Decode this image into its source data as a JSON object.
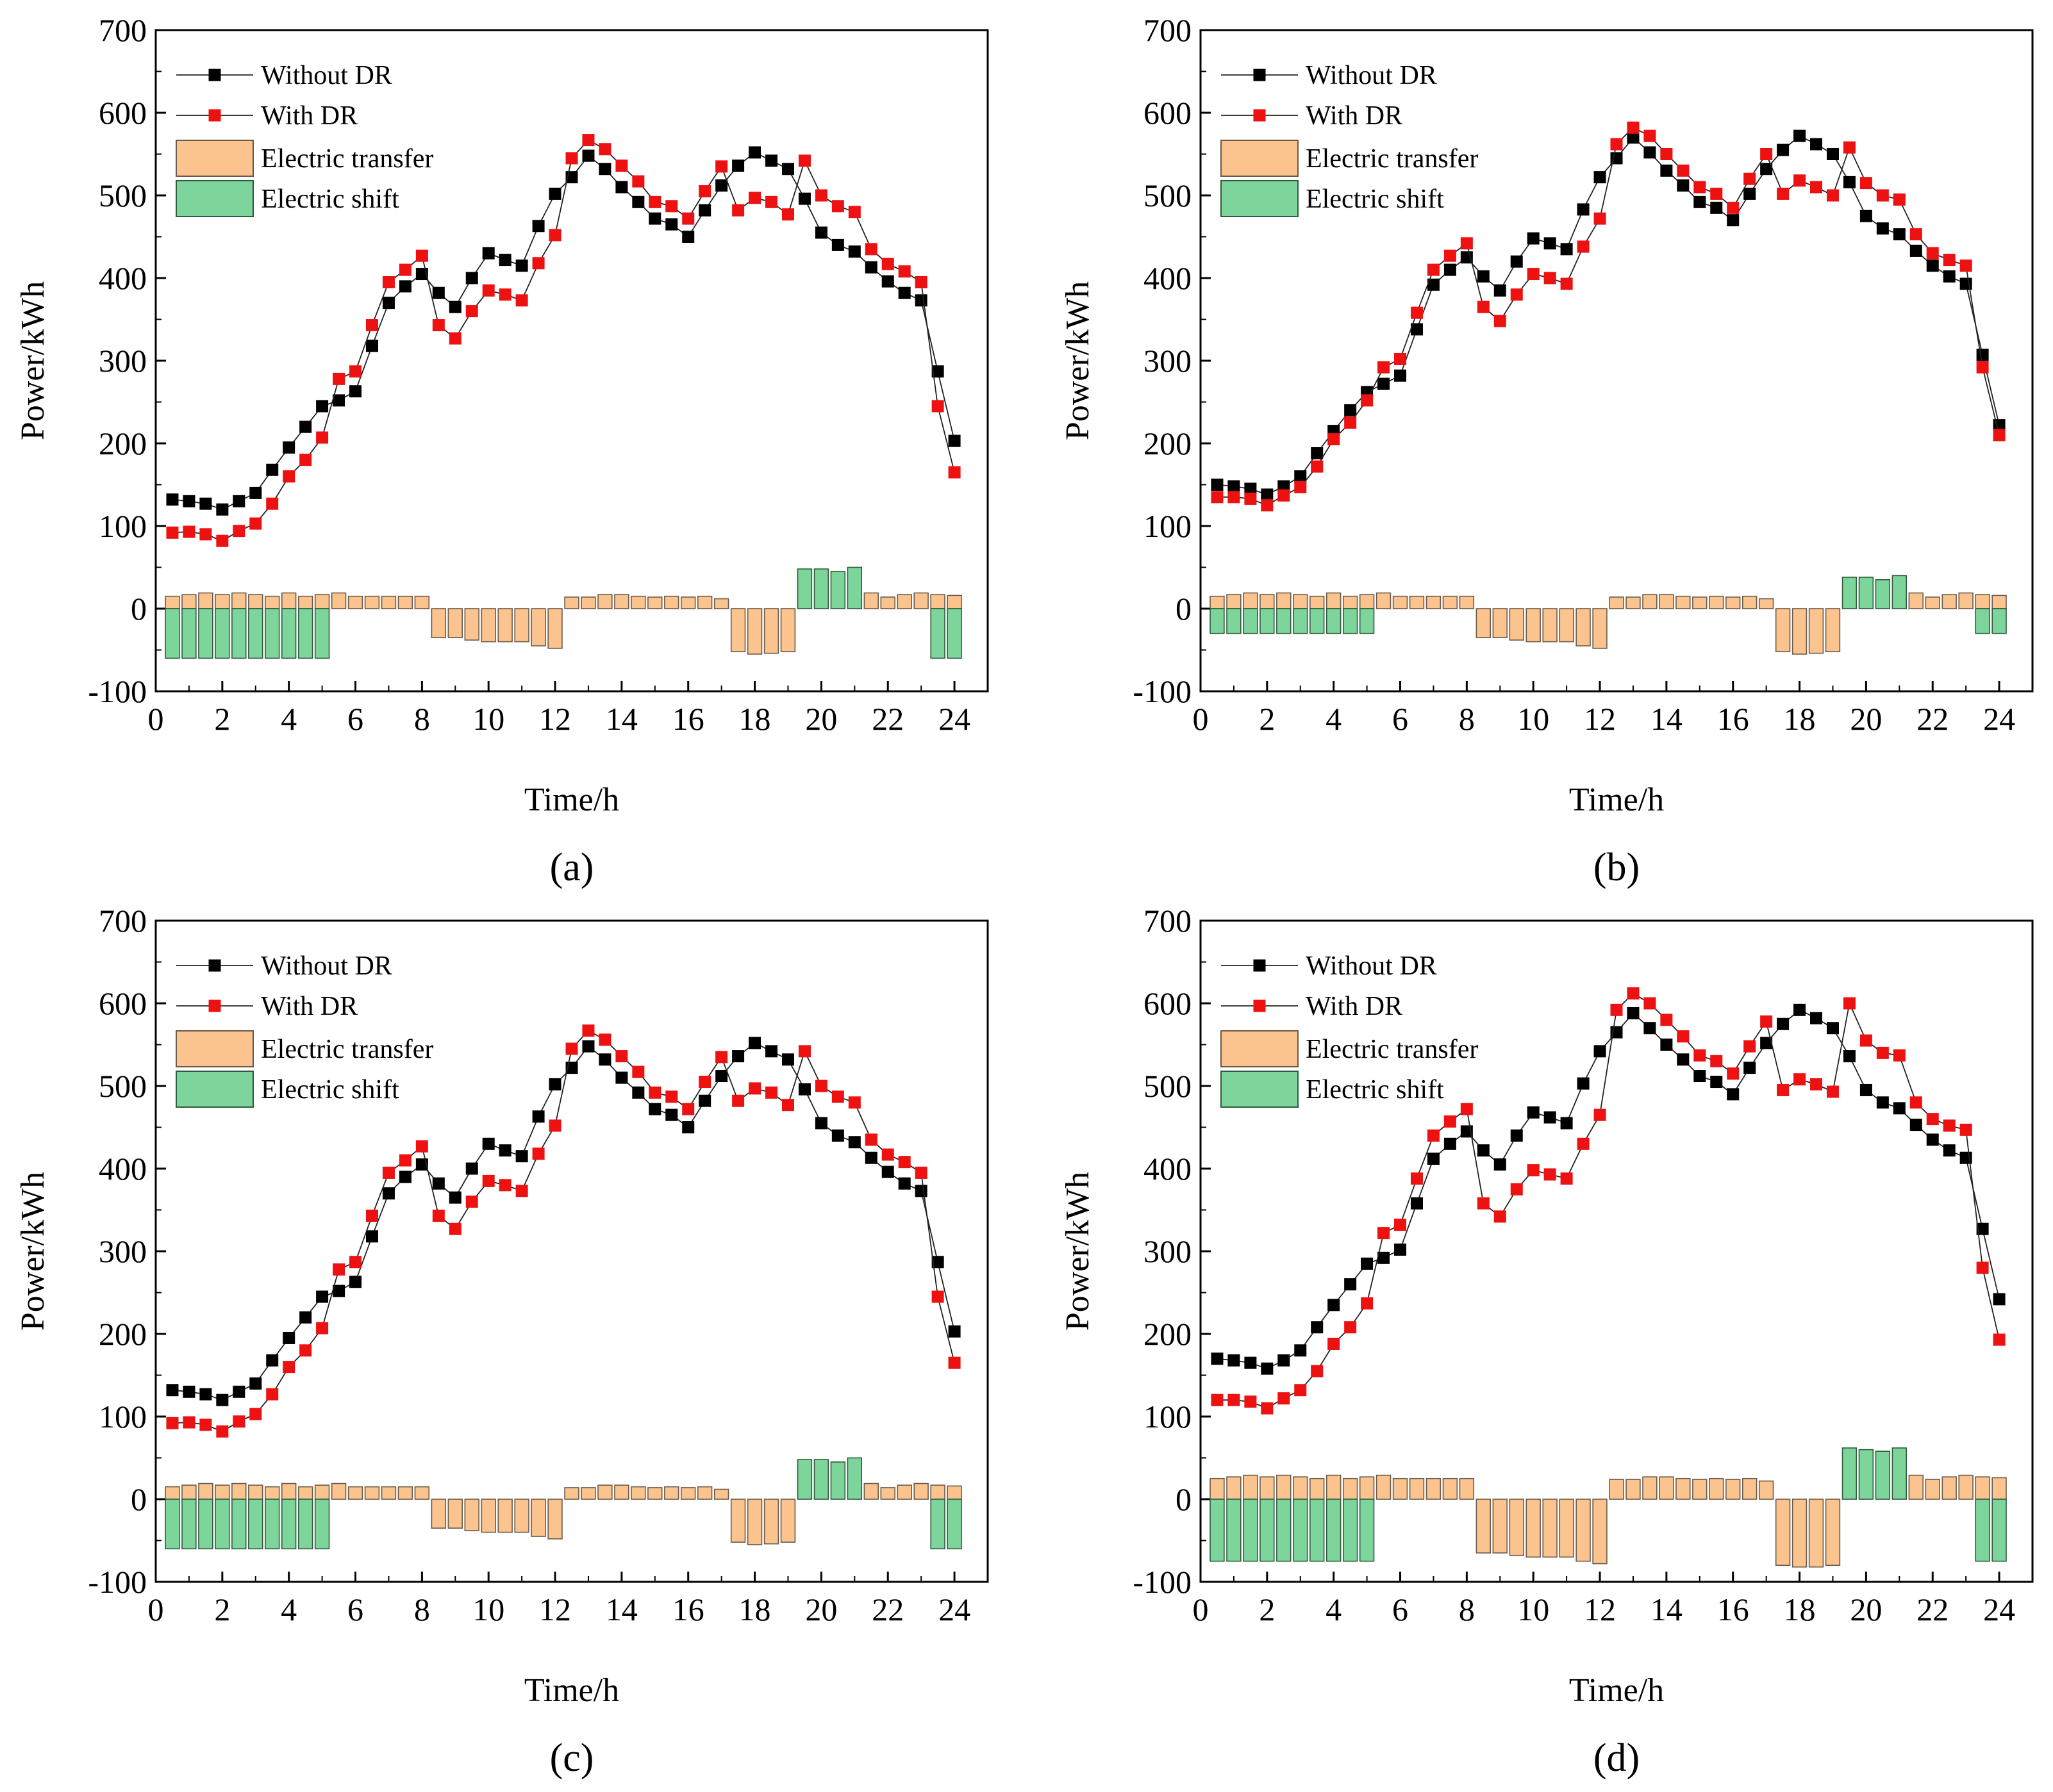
{
  "colors": {
    "without": "#000000",
    "with": "#ee1111",
    "transfer_fill": "#fbc38d",
    "transfer_stroke": "#6b5a4a",
    "shift_fill": "#7dd59b",
    "shift_stroke": "#2f5a3c",
    "axis": "#000000"
  },
  "chart_data": [
    {
      "type": "line+bar",
      "panel_label": "(a)",
      "xlabel": "Time/h",
      "ylabel": "Power/kWh",
      "xlim": [
        0,
        25
      ],
      "ylim": [
        -100,
        700
      ],
      "xticks": [
        0,
        2,
        4,
        6,
        8,
        10,
        12,
        14,
        16,
        18,
        20,
        22,
        24
      ],
      "yticks": [
        -100,
        0,
        100,
        200,
        300,
        400,
        500,
        600,
        700
      ],
      "legend": [
        "Without DR",
        "With DR",
        "Electric transfer",
        "Electric shift"
      ],
      "x": [
        0.5,
        1,
        1.5,
        2,
        2.5,
        3,
        3.5,
        4,
        4.5,
        5,
        5.5,
        6,
        6.5,
        7,
        7.5,
        8,
        8.5,
        9,
        9.5,
        10,
        10.5,
        11,
        11.5,
        12,
        12.5,
        13,
        13.5,
        14,
        14.5,
        15,
        15.5,
        16,
        16.5,
        17,
        17.5,
        18,
        18.5,
        19,
        19.5,
        20,
        20.5,
        21,
        21.5,
        22,
        22.5,
        23,
        23.5,
        24
      ],
      "series": [
        {
          "name": "Without DR",
          "values": [
            132,
            130,
            127,
            120,
            130,
            140,
            168,
            195,
            220,
            245,
            252,
            263,
            318,
            370,
            390,
            405,
            382,
            365,
            400,
            430,
            422,
            415,
            463,
            502,
            522,
            548,
            532,
            510,
            492,
            472,
            465,
            450,
            482,
            512,
            536,
            552,
            542,
            532,
            496,
            455,
            440,
            432,
            413,
            396,
            382,
            373,
            287,
            203
          ]
        },
        {
          "name": "With DR",
          "values": [
            92,
            93,
            90,
            82,
            94,
            103,
            127,
            160,
            180,
            207,
            278,
            287,
            343,
            395,
            410,
            427,
            343,
            327,
            360,
            385,
            380,
            373,
            418,
            452,
            545,
            567,
            556,
            536,
            517,
            492,
            487,
            472,
            505,
            535,
            482,
            497,
            492,
            477,
            542,
            500,
            487,
            480,
            435,
            417,
            408,
            395,
            245,
            165
          ]
        },
        {
          "name": "Electric transfer",
          "values": [
            15,
            17,
            19,
            17,
            19,
            17,
            15,
            19,
            15,
            17,
            19,
            15,
            15,
            15,
            15,
            15,
            -35,
            -35,
            -38,
            -40,
            -40,
            -40,
            -45,
            -48,
            14,
            14,
            17,
            17,
            15,
            14,
            15,
            14,
            15,
            12,
            -52,
            -55,
            -54,
            -52,
            0,
            0,
            0,
            0,
            19,
            14,
            17,
            19,
            17,
            16
          ]
        },
        {
          "name": "Electric shift",
          "values": [
            -60,
            -60,
            -60,
            -60,
            -60,
            -60,
            -60,
            -60,
            -60,
            -60,
            0,
            0,
            0,
            0,
            0,
            0,
            0,
            0,
            0,
            0,
            0,
            0,
            0,
            0,
            0,
            0,
            0,
            0,
            0,
            0,
            0,
            0,
            0,
            0,
            0,
            0,
            0,
            0,
            48,
            48,
            45,
            50,
            0,
            0,
            0,
            0,
            -60,
            -60
          ]
        }
      ]
    },
    {
      "type": "line+bar",
      "panel_label": "(b)",
      "xlabel": "Time/h",
      "ylabel": "Power/kWh",
      "xlim": [
        0,
        25
      ],
      "ylim": [
        -100,
        700
      ],
      "xticks": [
        0,
        2,
        4,
        6,
        8,
        10,
        12,
        14,
        16,
        18,
        20,
        22,
        24
      ],
      "yticks": [
        -100,
        0,
        100,
        200,
        300,
        400,
        500,
        600,
        700
      ],
      "legend": [
        "Without DR",
        "With DR",
        "Electric transfer",
        "Electric shift"
      ],
      "x": [
        0.5,
        1,
        1.5,
        2,
        2.5,
        3,
        3.5,
        4,
        4.5,
        5,
        5.5,
        6,
        6.5,
        7,
        7.5,
        8,
        8.5,
        9,
        9.5,
        10,
        10.5,
        11,
        11.5,
        12,
        12.5,
        13,
        13.5,
        14,
        14.5,
        15,
        15.5,
        16,
        16.5,
        17,
        17.5,
        18,
        18.5,
        19,
        19.5,
        20,
        20.5,
        21,
        21.5,
        22,
        22.5,
        23,
        23.5,
        24
      ],
      "series": [
        {
          "name": "Without DR",
          "values": [
            150,
            148,
            145,
            138,
            148,
            160,
            188,
            215,
            240,
            262,
            272,
            282,
            338,
            392,
            410,
            425,
            402,
            385,
            420,
            448,
            442,
            435,
            483,
            522,
            545,
            570,
            552,
            530,
            512,
            492,
            485,
            470,
            502,
            532,
            555,
            572,
            562,
            550,
            516,
            475,
            460,
            453,
            433,
            415,
            402,
            393,
            307,
            222
          ]
        },
        {
          "name": "With DR",
          "values": [
            135,
            135,
            133,
            125,
            137,
            147,
            172,
            205,
            225,
            252,
            292,
            302,
            358,
            410,
            427,
            442,
            365,
            348,
            380,
            405,
            400,
            393,
            438,
            472,
            562,
            582,
            572,
            550,
            530,
            510,
            502,
            485,
            520,
            550,
            502,
            518,
            510,
            500,
            558,
            515,
            500,
            495,
            453,
            430,
            422,
            415,
            292,
            210
          ]
        },
        {
          "name": "Electric transfer",
          "values": [
            15,
            17,
            19,
            17,
            19,
            17,
            15,
            19,
            15,
            17,
            19,
            15,
            15,
            15,
            15,
            15,
            -35,
            -35,
            -38,
            -40,
            -40,
            -40,
            -45,
            -48,
            14,
            14,
            17,
            17,
            15,
            14,
            15,
            14,
            15,
            12,
            -52,
            -55,
            -54,
            -52,
            0,
            0,
            0,
            0,
            19,
            14,
            17,
            19,
            17,
            16
          ]
        },
        {
          "name": "Electric shift",
          "values": [
            -30,
            -30,
            -30,
            -30,
            -30,
            -30,
            -30,
            -30,
            -30,
            -30,
            0,
            0,
            0,
            0,
            0,
            0,
            0,
            0,
            0,
            0,
            0,
            0,
            0,
            0,
            0,
            0,
            0,
            0,
            0,
            0,
            0,
            0,
            0,
            0,
            0,
            0,
            0,
            0,
            38,
            38,
            35,
            40,
            0,
            0,
            0,
            0,
            -30,
            -30
          ]
        }
      ]
    },
    {
      "type": "line+bar",
      "panel_label": "(c)",
      "xlabel": "Time/h",
      "ylabel": "Power/kWh",
      "xlim": [
        0,
        25
      ],
      "ylim": [
        -100,
        700
      ],
      "xticks": [
        0,
        2,
        4,
        6,
        8,
        10,
        12,
        14,
        16,
        18,
        20,
        22,
        24
      ],
      "yticks": [
        -100,
        0,
        100,
        200,
        300,
        400,
        500,
        600,
        700
      ],
      "legend": [
        "Without DR",
        "With DR",
        "Electric transfer",
        "Electric shift"
      ],
      "x": [
        0.5,
        1,
        1.5,
        2,
        2.5,
        3,
        3.5,
        4,
        4.5,
        5,
        5.5,
        6,
        6.5,
        7,
        7.5,
        8,
        8.5,
        9,
        9.5,
        10,
        10.5,
        11,
        11.5,
        12,
        12.5,
        13,
        13.5,
        14,
        14.5,
        15,
        15.5,
        16,
        16.5,
        17,
        17.5,
        18,
        18.5,
        19,
        19.5,
        20,
        20.5,
        21,
        21.5,
        22,
        22.5,
        23,
        23.5,
        24
      ],
      "series": [
        {
          "name": "Without DR",
          "values": [
            132,
            130,
            127,
            120,
            130,
            140,
            168,
            195,
            220,
            245,
            252,
            263,
            318,
            370,
            390,
            405,
            382,
            365,
            400,
            430,
            422,
            415,
            463,
            502,
            522,
            548,
            532,
            510,
            492,
            472,
            465,
            450,
            482,
            512,
            536,
            552,
            542,
            532,
            496,
            455,
            440,
            432,
            413,
            396,
            382,
            373,
            287,
            203
          ]
        },
        {
          "name": "With DR",
          "values": [
            92,
            93,
            90,
            82,
            94,
            103,
            127,
            160,
            180,
            207,
            278,
            287,
            343,
            395,
            410,
            427,
            343,
            327,
            360,
            385,
            380,
            373,
            418,
            452,
            545,
            567,
            556,
            536,
            517,
            492,
            487,
            472,
            505,
            535,
            482,
            497,
            492,
            477,
            542,
            500,
            487,
            480,
            435,
            417,
            408,
            395,
            245,
            165
          ]
        },
        {
          "name": "Electric transfer",
          "values": [
            15,
            17,
            19,
            17,
            19,
            17,
            15,
            19,
            15,
            17,
            19,
            15,
            15,
            15,
            15,
            15,
            -35,
            -35,
            -38,
            -40,
            -40,
            -40,
            -45,
            -48,
            14,
            14,
            17,
            17,
            15,
            14,
            15,
            14,
            15,
            12,
            -52,
            -55,
            -54,
            -52,
            0,
            0,
            0,
            0,
            19,
            14,
            17,
            19,
            17,
            16
          ]
        },
        {
          "name": "Electric shift",
          "values": [
            -60,
            -60,
            -60,
            -60,
            -60,
            -60,
            -60,
            -60,
            -60,
            -60,
            0,
            0,
            0,
            0,
            0,
            0,
            0,
            0,
            0,
            0,
            0,
            0,
            0,
            0,
            0,
            0,
            0,
            0,
            0,
            0,
            0,
            0,
            0,
            0,
            0,
            0,
            0,
            0,
            48,
            48,
            45,
            50,
            0,
            0,
            0,
            0,
            -60,
            -60
          ]
        }
      ]
    },
    {
      "type": "line+bar",
      "panel_label": "(d)",
      "xlabel": "Time/h",
      "ylabel": "Power/kWh",
      "xlim": [
        0,
        25
      ],
      "ylim": [
        -100,
        700
      ],
      "xticks": [
        0,
        2,
        4,
        6,
        8,
        10,
        12,
        14,
        16,
        18,
        20,
        22,
        24
      ],
      "yticks": [
        -100,
        0,
        100,
        200,
        300,
        400,
        500,
        600,
        700
      ],
      "legend": [
        "Without DR",
        "With DR",
        "Electric transfer",
        "Electric shift"
      ],
      "x": [
        0.5,
        1,
        1.5,
        2,
        2.5,
        3,
        3.5,
        4,
        4.5,
        5,
        5.5,
        6,
        6.5,
        7,
        7.5,
        8,
        8.5,
        9,
        9.5,
        10,
        10.5,
        11,
        11.5,
        12,
        12.5,
        13,
        13.5,
        14,
        14.5,
        15,
        15.5,
        16,
        16.5,
        17,
        17.5,
        18,
        18.5,
        19,
        19.5,
        20,
        20.5,
        21,
        21.5,
        22,
        22.5,
        23,
        23.5,
        24
      ],
      "series": [
        {
          "name": "Without DR",
          "values": [
            170,
            168,
            165,
            158,
            168,
            180,
            208,
            235,
            260,
            285,
            292,
            302,
            358,
            412,
            430,
            445,
            422,
            405,
            440,
            468,
            462,
            455,
            503,
            542,
            565,
            588,
            570,
            550,
            532,
            512,
            505,
            490,
            522,
            552,
            575,
            592,
            582,
            570,
            536,
            495,
            480,
            473,
            453,
            435,
            422,
            413,
            327,
            242
          ]
        },
        {
          "name": "With DR",
          "values": [
            120,
            120,
            118,
            110,
            122,
            132,
            155,
            188,
            208,
            237,
            322,
            332,
            388,
            440,
            457,
            472,
            358,
            342,
            375,
            398,
            393,
            388,
            430,
            465,
            592,
            612,
            600,
            580,
            560,
            537,
            530,
            515,
            548,
            578,
            495,
            508,
            502,
            493,
            600,
            555,
            540,
            537,
            480,
            460,
            452,
            447,
            280,
            193
          ]
        },
        {
          "name": "Electric transfer",
          "values": [
            25,
            27,
            29,
            27,
            29,
            27,
            25,
            29,
            25,
            27,
            29,
            25,
            25,
            25,
            25,
            25,
            -65,
            -65,
            -68,
            -70,
            -70,
            -70,
            -75,
            -78,
            24,
            24,
            27,
            27,
            25,
            24,
            25,
            24,
            25,
            22,
            -80,
            -82,
            -82,
            -80,
            0,
            0,
            0,
            0,
            29,
            24,
            27,
            29,
            27,
            26
          ]
        },
        {
          "name": "Electric shift",
          "values": [
            -75,
            -75,
            -75,
            -75,
            -75,
            -75,
            -75,
            -75,
            -75,
            -75,
            0,
            0,
            0,
            0,
            0,
            0,
            0,
            0,
            0,
            0,
            0,
            0,
            0,
            0,
            0,
            0,
            0,
            0,
            0,
            0,
            0,
            0,
            0,
            0,
            0,
            0,
            0,
            0,
            62,
            60,
            58,
            62,
            0,
            0,
            0,
            0,
            -75,
            -75
          ]
        }
      ]
    }
  ]
}
